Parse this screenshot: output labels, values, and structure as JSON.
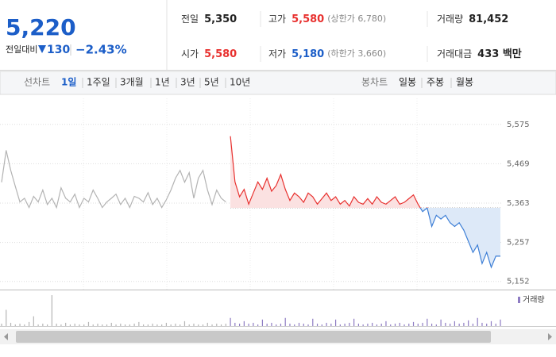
{
  "header": {
    "price": "5,220",
    "change_label": "전일대비",
    "change": "130",
    "change_rate": "−2.43%",
    "stats": [
      {
        "label": "전일",
        "value": "5,350"
      },
      {
        "label": "고가",
        "value": "5,580",
        "note": "(상한가 6,780)",
        "color": "#e8312f"
      },
      {
        "label": "거래량",
        "value": "81,452"
      },
      {
        "label": "시가",
        "value": "5,580",
        "color": "#e8312f"
      },
      {
        "label": "저가",
        "value": "5,180",
        "note": "(하한가 3,660)",
        "color": "#1c5ec8"
      },
      {
        "label": "거래대금",
        "value": "433 백만"
      }
    ]
  },
  "toolbar": {
    "line_label": "선차트",
    "periods": [
      "1일",
      "1주일",
      "3개월",
      "1년",
      "3년",
      "5년",
      "10년"
    ],
    "active": 0,
    "candle_label": "봉차트",
    "candles": [
      "일봉",
      "주봉",
      "월봉"
    ]
  },
  "chart_data": {
    "type": "line",
    "ylim": [
      5130,
      5645
    ],
    "yticks": [
      {
        "value": 5152,
        "label": "5,152"
      },
      {
        "value": 5257,
        "label": "5,257"
      },
      {
        "value": 5363,
        "label": "5,363"
      },
      {
        "value": 5469,
        "label": "5,469"
      },
      {
        "value": 5575,
        "label": "5,575"
      }
    ],
    "grid": true,
    "baseline": 5350,
    "series": [
      {
        "color": "#b3b3b3",
        "values": [
          5419,
          5505,
          5451,
          5408,
          5366,
          5376,
          5351,
          5381,
          5366,
          5398,
          5359,
          5376,
          5351,
          5404,
          5376,
          5366,
          5387,
          5351,
          5376,
          5366,
          5398,
          5376,
          5351,
          5366,
          5376,
          5387,
          5359,
          5376,
          5351,
          5381,
          5376,
          5366,
          5391,
          5359,
          5376,
          5351,
          5372,
          5398,
          5430,
          5451,
          5419,
          5445,
          5376,
          5430,
          5451,
          5398,
          5359,
          5398,
          5376,
          5366
        ]
      },
      {
        "color_up": "#e8312f",
        "color_down": "#3e7fd6",
        "fill_up": "#fbe1e1",
        "fill_down": "#dde9f8",
        "values": [
          5543,
          5420,
          5380,
          5400,
          5360,
          5390,
          5420,
          5400,
          5430,
          5395,
          5410,
          5440,
          5400,
          5370,
          5390,
          5380,
          5365,
          5390,
          5380,
          5360,
          5375,
          5390,
          5370,
          5380,
          5360,
          5370,
          5355,
          5380,
          5365,
          5360,
          5375,
          5360,
          5380,
          5365,
          5360,
          5370,
          5380,
          5360,
          5365,
          5375,
          5385,
          5360,
          5340,
          5350,
          5300,
          5330,
          5320,
          5330,
          5310,
          5300,
          5310,
          5290,
          5260,
          5230,
          5250,
          5200,
          5230,
          5190,
          5220,
          5220
        ]
      }
    ],
    "volume": {
      "label": "거래량",
      "ylim": [
        0,
        40
      ],
      "colors": [
        "#b5b5b5",
        "#8e7cc3"
      ],
      "values": [
        3,
        20,
        4,
        2,
        3,
        2,
        5,
        12,
        2,
        3,
        2,
        38,
        3,
        2,
        4,
        2,
        3,
        2,
        2,
        5,
        2,
        3,
        2,
        2,
        4,
        2,
        3,
        2,
        2,
        3,
        5,
        2,
        2,
        3,
        2,
        2,
        4,
        2,
        3,
        2,
        6,
        2,
        3,
        2,
        2,
        4,
        2,
        3,
        2,
        3,
        10,
        4,
        3,
        6,
        3,
        4,
        2,
        8,
        3,
        4,
        2,
        3,
        10,
        3,
        2,
        4,
        3,
        2,
        9,
        3,
        2,
        4,
        3,
        8,
        2,
        3,
        4,
        9,
        3,
        2,
        3,
        4,
        2,
        3,
        6,
        2,
        3,
        4,
        2,
        3,
        5,
        3,
        4,
        9,
        3,
        2,
        8,
        4,
        3,
        6,
        3,
        4,
        7,
        3,
        10,
        4,
        3,
        6,
        3,
        8
      ]
    }
  }
}
